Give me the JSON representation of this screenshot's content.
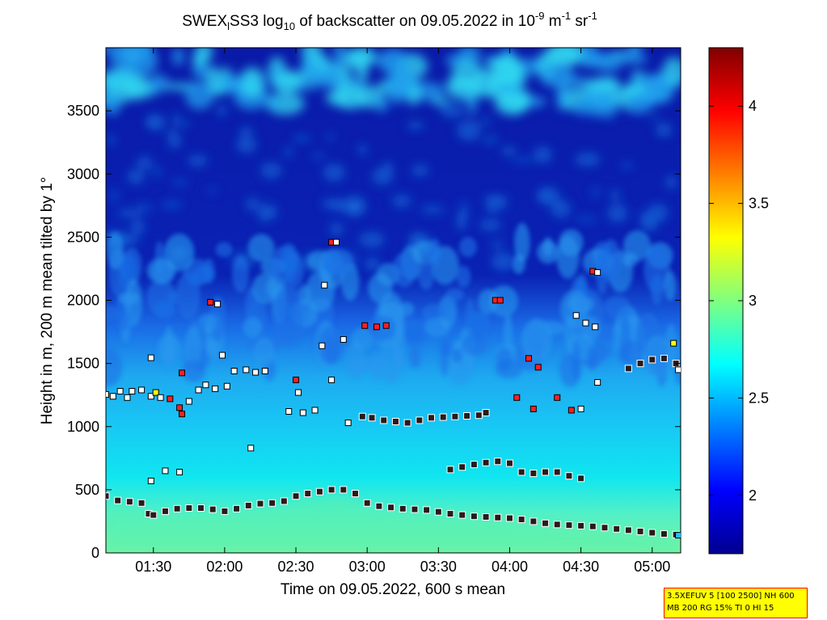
{
  "chart_data": {
    "type": "heatmap",
    "title": {
      "prefix": "SWEX",
      "prefix_sub": "l",
      "mid": "SS3 log",
      "mid_sub": "10",
      "rest": " of backscatter on 09.05.2022 in 10",
      "exp1": "-9",
      "unit1": " m",
      "exp2": "-1",
      "unit2": " sr",
      "exp3": "-1"
    },
    "xlabel": "Time on 09.05.2022, 600 s mean",
    "ylabel": "Height in m, 200 m mean tilted by 1°",
    "xlim": [
      "01:10",
      "05:12"
    ],
    "ylim": [
      0,
      4000
    ],
    "x_ticks": [
      "01:30",
      "02:00",
      "02:30",
      "03:00",
      "03:30",
      "04:00",
      "04:30",
      "05:00"
    ],
    "y_ticks": [
      0,
      500,
      1000,
      1500,
      2000,
      2500,
      3000,
      3500
    ],
    "colorbar": {
      "range": [
        1.7,
        4.3
      ],
      "ticks": [
        2,
        2.5,
        3,
        3.5,
        4
      ],
      "tick_labels": [
        "2",
        "2.5",
        "3",
        "3.5",
        "4"
      ],
      "colormap": "jet"
    },
    "series": [
      {
        "marker": "dark-square",
        "description_unit": "height m",
        "x": [
          "01:10",
          "01:15",
          "01:20",
          "01:25",
          "01:28",
          "01:30",
          "01:35",
          "01:40",
          "01:45",
          "01:50",
          "01:55",
          "02:00",
          "02:05",
          "02:10",
          "02:15",
          "02:20",
          "02:25",
          "02:30",
          "02:35",
          "02:40",
          "02:45",
          "02:50",
          "02:55",
          "03:00",
          "03:05",
          "03:10",
          "03:15",
          "03:20",
          "03:25",
          "03:30",
          "03:35",
          "03:40",
          "03:45",
          "03:50",
          "03:55",
          "04:00",
          "04:05",
          "04:10",
          "04:15",
          "04:20",
          "04:25",
          "04:30",
          "04:35",
          "04:40",
          "04:45",
          "04:50",
          "04:55",
          "05:00",
          "05:05",
          "05:10"
        ],
        "y": [
          450,
          415,
          405,
          395,
          310,
          300,
          330,
          350,
          355,
          355,
          345,
          330,
          350,
          375,
          390,
          395,
          410,
          450,
          470,
          485,
          500,
          500,
          470,
          395,
          370,
          360,
          350,
          345,
          340,
          325,
          310,
          300,
          290,
          285,
          280,
          275,
          265,
          250,
          235,
          225,
          220,
          215,
          210,
          200,
          190,
          180,
          170,
          160,
          150,
          145
        ]
      },
      {
        "marker": "dark-square",
        "x": [
          "03:35",
          "03:40",
          "03:45",
          "03:50",
          "03:55",
          "04:00",
          "04:05",
          "04:10",
          "04:15",
          "04:20",
          "04:25",
          "04:30"
        ],
        "y": [
          660,
          680,
          700,
          715,
          725,
          710,
          640,
          630,
          640,
          640,
          610,
          590
        ]
      },
      {
        "marker": "dark-square",
        "x": [
          "02:58",
          "03:02",
          "03:07",
          "03:12",
          "03:17",
          "03:22",
          "03:27",
          "03:32",
          "03:37",
          "03:42",
          "03:47",
          "03:50"
        ],
        "y": [
          1080,
          1070,
          1050,
          1040,
          1030,
          1050,
          1070,
          1075,
          1080,
          1085,
          1090,
          1110
        ]
      },
      {
        "marker": "dark-square",
        "x": [
          "04:50",
          "04:55",
          "05:00",
          "05:05",
          "05:10"
        ],
        "y": [
          1460,
          1500,
          1530,
          1540,
          1500
        ]
      }
    ],
    "scatter_points": [
      {
        "x": "01:10",
        "y": 1255,
        "color": "#ffffff"
      },
      {
        "x": "01:13",
        "y": 1240,
        "color": "#ffffff"
      },
      {
        "x": "01:16",
        "y": 1280,
        "color": "#ffffff"
      },
      {
        "x": "01:19",
        "y": 1230,
        "color": "#ffffff"
      },
      {
        "x": "01:21",
        "y": 1280,
        "color": "#ffffff"
      },
      {
        "x": "01:25",
        "y": 1290,
        "color": "#ffffff"
      },
      {
        "x": "01:29",
        "y": 1240,
        "color": "#ffffff"
      },
      {
        "x": "01:31",
        "y": 1270,
        "color": "#ffff00"
      },
      {
        "x": "01:33",
        "y": 1230,
        "color": "#ffffff"
      },
      {
        "x": "01:37",
        "y": 1220,
        "color": "#ff2020"
      },
      {
        "x": "01:41",
        "y": 1150,
        "color": "#ff2020"
      },
      {
        "x": "01:42",
        "y": 1100,
        "color": "#ff2020"
      },
      {
        "x": "01:45",
        "y": 1200,
        "color": "#ffffff"
      },
      {
        "x": "01:49",
        "y": 1290,
        "color": "#ffffff"
      },
      {
        "x": "01:52",
        "y": 1330,
        "color": "#ffffff"
      },
      {
        "x": "01:56",
        "y": 1300,
        "color": "#ffffff"
      },
      {
        "x": "02:01",
        "y": 1320,
        "color": "#ffffff"
      },
      {
        "x": "02:04",
        "y": 1440,
        "color": "#ffffff"
      },
      {
        "x": "02:09",
        "y": 1450,
        "color": "#ffffff"
      },
      {
        "x": "02:13",
        "y": 1430,
        "color": "#ffffff"
      },
      {
        "x": "02:17",
        "y": 1440,
        "color": "#ffffff"
      },
      {
        "x": "01:29",
        "y": 1545,
        "color": "#ffffff"
      },
      {
        "x": "01:42",
        "y": 1425,
        "color": "#ff2020"
      },
      {
        "x": "01:59",
        "y": 1565,
        "color": "#ffffff"
      },
      {
        "x": "02:30",
        "y": 1370,
        "color": "#ff2020"
      },
      {
        "x": "02:31",
        "y": 1270,
        "color": "#ffffff"
      },
      {
        "x": "02:27",
        "y": 1120,
        "color": "#ffffff"
      },
      {
        "x": "02:33",
        "y": 1110,
        "color": "#ffffff"
      },
      {
        "x": "02:38",
        "y": 1130,
        "color": "#ffffff"
      },
      {
        "x": "02:41",
        "y": 1640,
        "color": "#ffffff"
      },
      {
        "x": "02:45",
        "y": 1370,
        "color": "#ffffff"
      },
      {
        "x": "02:50",
        "y": 1690,
        "color": "#ffffff"
      },
      {
        "x": "02:52",
        "y": 1030,
        "color": "#ffffff"
      },
      {
        "x": "02:11",
        "y": 830,
        "color": "#ffffff"
      },
      {
        "x": "01:29",
        "y": 570,
        "color": "#ffffff"
      },
      {
        "x": "01:35",
        "y": 650,
        "color": "#ffffff"
      },
      {
        "x": "01:41",
        "y": 640,
        "color": "#ffffff"
      },
      {
        "x": "01:54",
        "y": 1985,
        "color": "#ff2020"
      },
      {
        "x": "01:57",
        "y": 1970,
        "color": "#ffffff"
      },
      {
        "x": "02:42",
        "y": 2120,
        "color": "#ffffff"
      },
      {
        "x": "02:45",
        "y": 2460,
        "color": "#ff2020"
      },
      {
        "x": "02:47",
        "y": 2460,
        "color": "#ffffff"
      },
      {
        "x": "02:59",
        "y": 1800,
        "color": "#ff2020"
      },
      {
        "x": "03:04",
        "y": 1790,
        "color": "#ff2020"
      },
      {
        "x": "03:08",
        "y": 1800,
        "color": "#ff2020"
      },
      {
        "x": "03:54",
        "y": 2000,
        "color": "#ff2020"
      },
      {
        "x": "03:56",
        "y": 2000,
        "color": "#ff2020"
      },
      {
        "x": "04:08",
        "y": 1540,
        "color": "#ff2020"
      },
      {
        "x": "04:12",
        "y": 1470,
        "color": "#ff2020"
      },
      {
        "x": "04:10",
        "y": 1140,
        "color": "#ff2020"
      },
      {
        "x": "04:03",
        "y": 1230,
        "color": "#ff2020"
      },
      {
        "x": "04:20",
        "y": 1230,
        "color": "#ff2020"
      },
      {
        "x": "04:26",
        "y": 1130,
        "color": "#ff2020"
      },
      {
        "x": "04:30",
        "y": 1140,
        "color": "#ffffff"
      },
      {
        "x": "04:28",
        "y": 1880,
        "color": "#ffffff"
      },
      {
        "x": "04:32",
        "y": 1820,
        "color": "#ffffff"
      },
      {
        "x": "04:36",
        "y": 1790,
        "color": "#ffffff"
      },
      {
        "x": "04:35",
        "y": 2230,
        "color": "#ff2020"
      },
      {
        "x": "04:37",
        "y": 2220,
        "color": "#ffffff"
      },
      {
        "x": "04:37",
        "y": 1350,
        "color": "#ffffff"
      },
      {
        "x": "05:09",
        "y": 1660,
        "color": "#ffff00"
      },
      {
        "x": "05:11",
        "y": 1450,
        "color": "#ffffff"
      },
      {
        "x": "05:11",
        "y": 140,
        "color": "#20c0ff"
      }
    ]
  },
  "info_box": {
    "line1": "3.5XEFUV 5 [100 2500] NH 600",
    "line2": "MB 200 RG 15% TI 0 HI 15"
  },
  "colors": {
    "box_bg": "#ffff00",
    "box_border": "#ff0000"
  }
}
